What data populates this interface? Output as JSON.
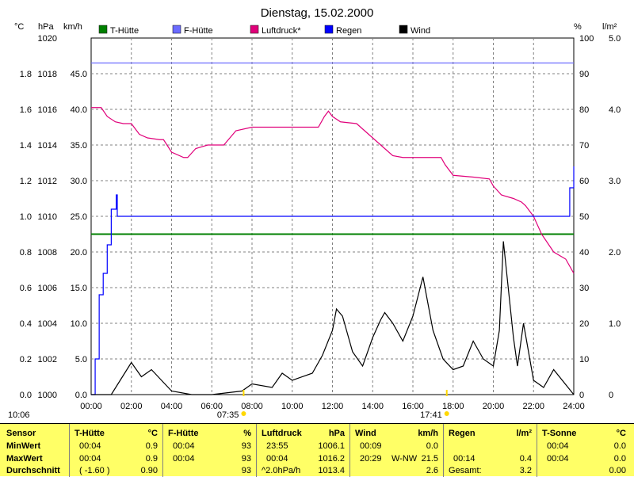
{
  "chart_data": {
    "type": "line",
    "title": "Dienstag, 15.02.2000",
    "legend": [
      "T-Hütte",
      "F-Hütte",
      "Luftdruck*",
      "Regen",
      "Wind"
    ],
    "legend_colors": {
      "T-Hütte": "#008000",
      "F-Hütte": "#6b6bff",
      "Luftdruck*": "#e0007a",
      "Regen": "#0000ff",
      "Wind": "#000000"
    },
    "left_axes": [
      {
        "unit": "°C",
        "ylim": [
          0,
          2.0
        ],
        "ticks": [
          "0.0",
          "0.2",
          "0.4",
          "0.6",
          "0.8",
          "1.0",
          "1.2",
          "1.4",
          "1.6",
          "1.8"
        ]
      },
      {
        "unit": "hPa",
        "ylim": [
          1000,
          1020
        ],
        "ticks": [
          "1000",
          "1002",
          "1004",
          "1006",
          "1008",
          "1010",
          "1012",
          "1014",
          "1016",
          "1018",
          "1020"
        ]
      },
      {
        "unit": "km/h",
        "ylim": [
          0,
          50
        ],
        "ticks": [
          "0.0",
          "5.0",
          "10.0",
          "15.0",
          "20.0",
          "25.0",
          "30.0",
          "35.0",
          "40.0",
          "45.0"
        ]
      }
    ],
    "right_axes": [
      {
        "unit": "%",
        "ylim": [
          0,
          100
        ],
        "ticks": [
          "0",
          "10",
          "20",
          "30",
          "40",
          "50",
          "60",
          "70",
          "80",
          "90",
          "100"
        ]
      },
      {
        "unit": "l/m²",
        "ylim": [
          0,
          5.0
        ],
        "ticks": [
          "0",
          "1.0",
          "2.0",
          "3.0",
          "4.0",
          "5.0"
        ]
      }
    ],
    "x_ticks": [
      "00:00",
      "02:00",
      "04:00",
      "06:00",
      "08:00",
      "10:00",
      "12:00",
      "14:00",
      "16:00",
      "18:00",
      "20:00",
      "22:00",
      "24:00"
    ],
    "x_range_hours": [
      0,
      24
    ],
    "grid": true,
    "sunrise": "07:35",
    "sunset": "17:41",
    "time_label": "10:06",
    "series": [
      {
        "name": "T-Hütte",
        "axis": "°C",
        "x": [
          0,
          24
        ],
        "y": [
          0.9,
          0.9
        ]
      },
      {
        "name": "F-Hütte",
        "axis": "%",
        "x": [
          0,
          24
        ],
        "y": [
          93,
          93
        ]
      },
      {
        "name": "Luftdruck*",
        "axis": "hPa",
        "x": [
          0,
          0.5,
          0.8,
          1.2,
          1.6,
          2.0,
          2.4,
          2.8,
          3.4,
          3.6,
          4.0,
          4.6,
          4.8,
          5.2,
          5.8,
          6.3,
          6.6,
          7.2,
          8.0,
          9.0,
          10.0,
          11.0,
          11.3,
          11.6,
          11.8,
          12.0,
          12.4,
          13.2,
          13.6,
          14.0,
          14.6,
          15.0,
          15.5,
          16.5,
          17.4,
          17.6,
          18.0,
          19.0,
          19.8,
          20.0,
          20.4,
          21.0,
          21.4,
          21.6,
          22.0,
          22.4,
          23.0,
          23.6,
          24.0
        ],
        "y": [
          1016.1,
          1016.1,
          1015.6,
          1015.3,
          1015.2,
          1015.2,
          1014.6,
          1014.4,
          1014.3,
          1014.3,
          1013.6,
          1013.3,
          1013.3,
          1013.8,
          1014.0,
          1014.0,
          1014.0,
          1014.8,
          1015.0,
          1015.0,
          1015.0,
          1015.0,
          1015.0,
          1015.6,
          1015.9,
          1015.6,
          1015.3,
          1015.2,
          1014.8,
          1014.4,
          1013.8,
          1013.4,
          1013.3,
          1013.3,
          1013.3,
          1012.9,
          1012.3,
          1012.2,
          1012.1,
          1011.7,
          1011.2,
          1011.0,
          1010.8,
          1010.6,
          1010.0,
          1009.0,
          1008.0,
          1007.6,
          1006.8
        ]
      },
      {
        "name": "Regen",
        "axis": "l/m²",
        "type": "step",
        "x": [
          0,
          0.2,
          0.4,
          0.6,
          0.8,
          1.0,
          1.25,
          1.3,
          23.5,
          23.8,
          24.0
        ],
        "y": [
          0,
          0.5,
          1.4,
          1.7,
          2.1,
          2.6,
          2.8,
          2.5,
          2.5,
          2.9,
          3.2
        ]
      },
      {
        "name": "Wind",
        "axis": "km/h",
        "x": [
          0,
          1,
          2,
          2.5,
          3,
          3.5,
          4,
          5,
          6,
          7.5,
          8,
          9,
          9.5,
          10,
          11,
          11.5,
          12,
          12.2,
          12.5,
          13,
          13.5,
          14,
          14.4,
          14.6,
          15,
          15.5,
          16,
          16.5,
          17,
          17.5,
          18,
          18.5,
          19,
          19.5,
          20,
          20.3,
          20.5,
          21,
          21.2,
          21.5,
          22,
          22.5,
          23,
          24
        ],
        "y": [
          0,
          0,
          4.5,
          2.5,
          3.5,
          2.0,
          0.5,
          0,
          0,
          0.5,
          1.5,
          1.0,
          3.0,
          2.0,
          3.0,
          5.5,
          9.0,
          12.0,
          11.0,
          6.0,
          4.0,
          8.0,
          10.5,
          11.5,
          10.0,
          7.5,
          11.0,
          16.5,
          9.0,
          5.0,
          3.5,
          4.0,
          7.5,
          5.0,
          4.0,
          9.0,
          21.5,
          8.0,
          4.0,
          10.0,
          2.0,
          1.0,
          3.5,
          0
        ]
      }
    ]
  },
  "markers": {
    "sun_icon": "sun-icon"
  },
  "stats": {
    "row_labels": [
      "Sensor",
      "MinWert",
      "MaxWert",
      "Durchschnitt"
    ],
    "t_huette": {
      "header": "T-Hütte",
      "unit": "°C",
      "min_time": "00:04",
      "min_val": "0.9",
      "max_time": "00:04",
      "max_val": "0.9",
      "avg_note": "( -1.60 )",
      "avg_val": "0.90"
    },
    "f_huette": {
      "header": "F-Hütte",
      "unit": "%",
      "min_time": "00:04",
      "min_val": "93",
      "max_time": "00:04",
      "max_val": "93",
      "avg_val": "93"
    },
    "luftdruck": {
      "header": "Luftdruck",
      "unit": "hPa",
      "min_time": "23:55",
      "min_val": "1006.1",
      "max_time": "00:04",
      "max_val": "1016.2",
      "avg_note": "^2.0hPa/h",
      "avg_val": "1013.4"
    },
    "wind": {
      "header": "Wind",
      "unit": "km/h",
      "min_time": "00:09",
      "min_val": "0.0",
      "max_time": "20:29",
      "max_dir": "W-NW",
      "max_val": "21.5",
      "avg_val": "2.6"
    },
    "regen": {
      "header": "Regen",
      "unit": "l/m²",
      "max_time": "00:14",
      "max_val": "0.4",
      "avg_note": "Gesamt:",
      "avg_val": "3.2"
    },
    "t_sonne": {
      "header": "T-Sonne",
      "unit": "°C",
      "min_time": "00:04",
      "min_val": "0.0",
      "max_time": "00:04",
      "max_val": "0.0",
      "avg_val": "0.00"
    }
  }
}
